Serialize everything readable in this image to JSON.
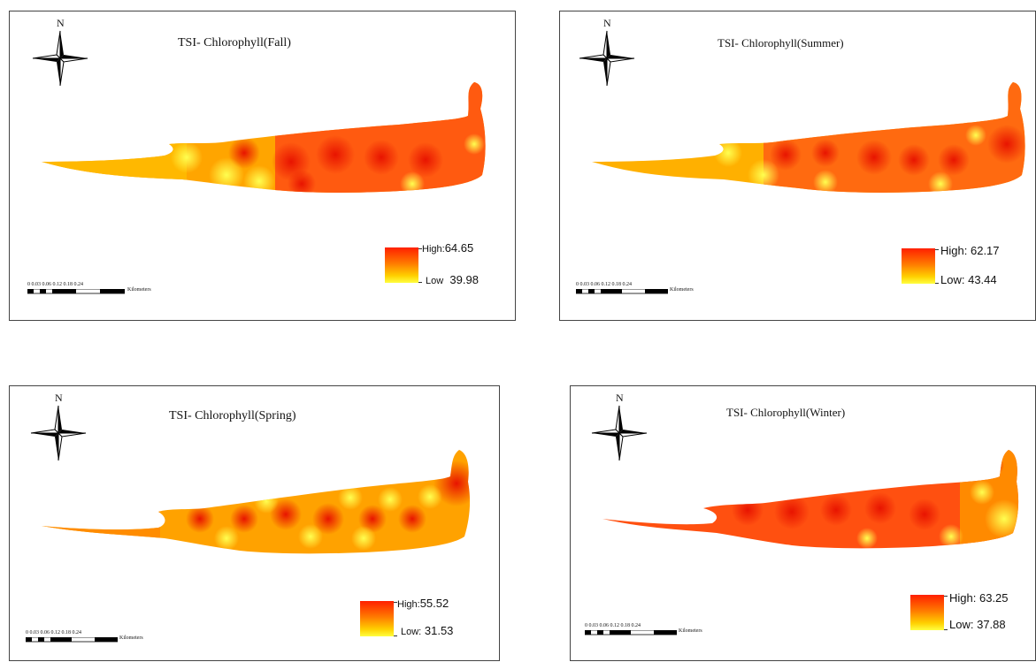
{
  "maps": [
    {
      "title": "TSI- Chlorophyll(Fall)",
      "north": "N",
      "legend": {
        "high_label": "High:",
        "high_value": "64.65",
        "low_label": "Low",
        "low_value": "39.98"
      },
      "scale": {
        "ticks": "0    0.03 0.06    0.12    0.18    0.24",
        "unit": "Kilometers"
      }
    },
    {
      "title": "TSI- Chlorophyll(Summer)",
      "north": "N",
      "legend": {
        "high_label": "High:",
        "high_value": "62.17",
        "low_label": "Low:",
        "low_value": "43.44"
      },
      "scale": {
        "ticks": "0 0.03 0.06    0.12    0.18    0.24",
        "unit": "Kilometers"
      }
    },
    {
      "title": "TSI- Chlorophyll(Spring)",
      "north": "N",
      "legend": {
        "high_label": "High:",
        "high_value": "55.52",
        "low_label": "Low:",
        "low_value": "31.53"
      },
      "scale": {
        "ticks": "0 0.03 0.06    0.12    0.18    0.24",
        "unit": "Kilometers"
      }
    },
    {
      "title": "TSI- Chlorophyll(Winter)",
      "north": "N",
      "legend": {
        "high_label": "High:",
        "high_value": "63.25",
        "low_label": "Low:",
        "low_value": "37.88"
      },
      "scale": {
        "ticks": "0 0.03 0.06    0.12    0.18    0.24",
        "unit": "Kilometers"
      }
    }
  ],
  "colors": {
    "high": "#ff1f00",
    "mid": "#ff7a00",
    "low": "#ffff40",
    "frame": "#444444"
  }
}
